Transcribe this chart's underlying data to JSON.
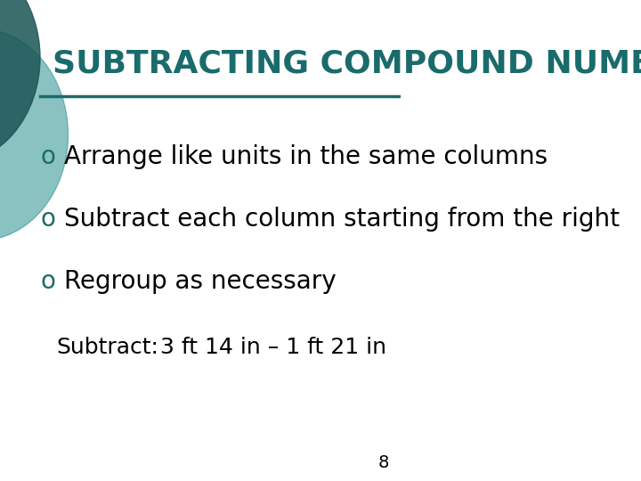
{
  "title": "SUBTRACTING COMPOUND NUMBERS",
  "title_color": "#1a6b6b",
  "title_fontsize": 26,
  "background_color": "#ffffff",
  "bullet_symbol": "o",
  "bullet_color": "#1a6b6b",
  "bullet_fontsize": 20,
  "bullets": [
    "Arrange like units in the same columns",
    "Subtract each column starting from the right",
    "Regroup as necessary"
  ],
  "bullet_text_color": "#000000",
  "bullet_text_fontsize": 20,
  "subtitle_label": "Subtract:",
  "subtitle_value": "3 ft 14 in – 1 ft 21 in",
  "subtitle_fontsize": 18,
  "subtitle_color": "#000000",
  "line_color": "#1a6b6b",
  "page_number": "8",
  "page_number_fontsize": 14,
  "page_number_color": "#000000",
  "left_circle_color": "#2a9090",
  "left_circle_dark_color": "#1a5555"
}
